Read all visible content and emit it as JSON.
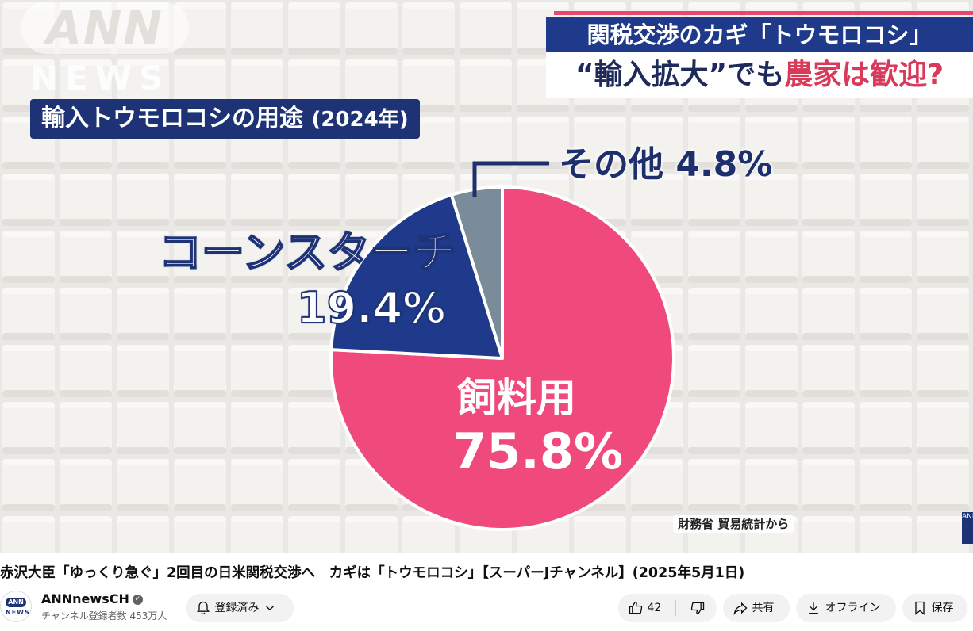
{
  "video": {
    "watermark": {
      "top": "ANN",
      "bottom": "NEWS"
    },
    "headline": {
      "top": "関税交渉のカギ「トウモロコシ」",
      "bottom_part1": "“輸入拡大”でも",
      "bottom_part2": "農家は歓迎?"
    },
    "chart_title": "輸入トウモロコシの用途",
    "chart_year": "(2024年)",
    "source": "財務省 貿易統計から",
    "corner_logo": "ANN"
  },
  "chart_data": {
    "type": "pie",
    "title": "輸入トウモロコシの用途 (2024年)",
    "slices": [
      {
        "label": "飼料用",
        "value": 75.8,
        "value_label": "75.8%",
        "color": "#ef4a7b"
      },
      {
        "label": "コーンスターチ",
        "value": 19.4,
        "value_label": "19.4%",
        "color": "#1f3a8a"
      },
      {
        "label": "その他",
        "value": 4.8,
        "value_label": "4.8%",
        "color": "#7a8c99"
      }
    ]
  },
  "labels": {
    "other": "その他 4.8%",
    "corn_name": "コーンスターチ",
    "corn_value": "19.4%",
    "feed_name": "飼料用",
    "feed_value": "75.8%"
  },
  "page": {
    "video_title": "赤沢大臣「ゆっくり急ぐ」2回目の日米関税交渉へ　カギは「トウモロコシ」【スーパーJチャンネル】(2025年5月1日)",
    "channel_name": "ANNnewsCH",
    "subscribers": "チャンネル登録者数 453万人",
    "avatar_top": "ANN",
    "avatar_bottom": "NEWS"
  },
  "actions": {
    "subscribe_label": "登録済み",
    "like_count": "42",
    "share_label": "共有",
    "offline_label": "オフライン",
    "save_label": "保存"
  },
  "colors": {
    "feed": "#ef4a7b",
    "cornstarch": "#1f3a8a",
    "other": "#7a8c99",
    "navy": "#1e3376",
    "accent_red": "#d93a5a"
  },
  "icons": [
    "bell-icon",
    "chevron-down-icon",
    "thumbs-up-icon",
    "thumbs-down-icon",
    "share-icon",
    "download-icon",
    "bookmark-icon",
    "verified-icon"
  ]
}
